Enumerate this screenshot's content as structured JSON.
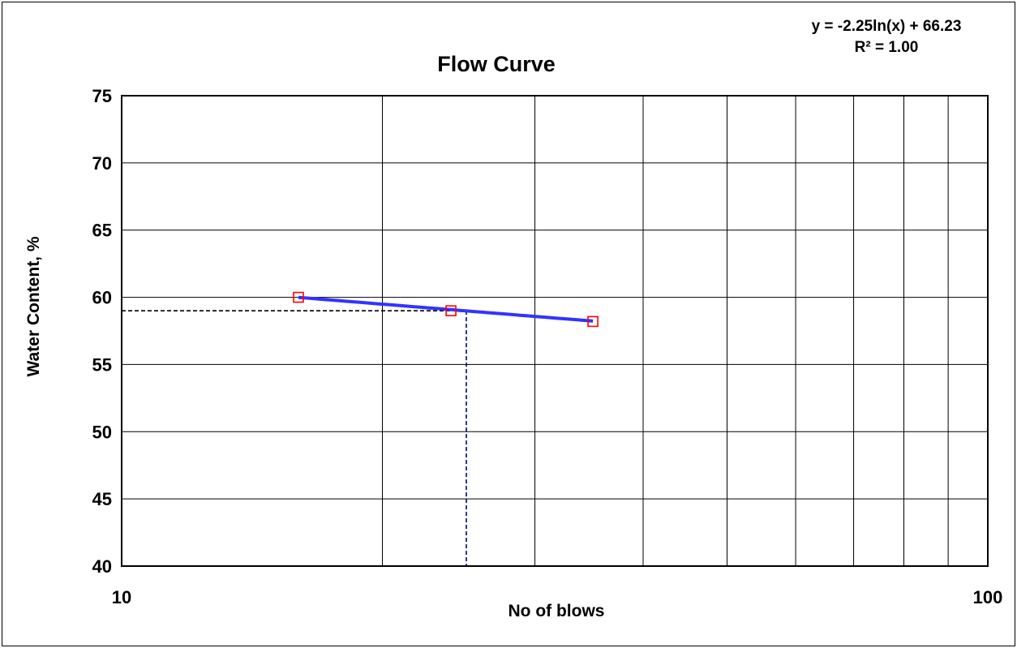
{
  "chart_data": {
    "type": "scatter",
    "title": "Flow  Curve",
    "xlabel": "No of blows",
    "ylabel": "Water Content, %",
    "x_scale": "log",
    "xlim": [
      10,
      100
    ],
    "ylim": [
      40,
      75
    ],
    "x_tick_labels": [
      "10",
      "100"
    ],
    "y_ticks": [
      40,
      45,
      50,
      55,
      60,
      65,
      70,
      75
    ],
    "y_tick_labels": [
      "40",
      "45",
      "50",
      "55",
      "60",
      "65",
      "70",
      "75"
    ],
    "grid": true,
    "series": [
      {
        "marker": "open-square",
        "color": "#ff0000",
        "x": [
          16,
          24,
          35
        ],
        "y": [
          60.0,
          59.0,
          58.2
        ]
      }
    ],
    "trendline": {
      "type": "logarithmic",
      "equation": "y = -2.25ln(x) + 66.23",
      "r_squared": "R² = 1.00",
      "coef": -2.25,
      "intercept": 66.23,
      "x_range": [
        16,
        35
      ],
      "color": "#3333ff"
    },
    "reference_lines": {
      "x": 25,
      "y": 59.0,
      "horizontal_color": "#000000",
      "vertical_color": "#000080",
      "style": "dashed"
    }
  }
}
